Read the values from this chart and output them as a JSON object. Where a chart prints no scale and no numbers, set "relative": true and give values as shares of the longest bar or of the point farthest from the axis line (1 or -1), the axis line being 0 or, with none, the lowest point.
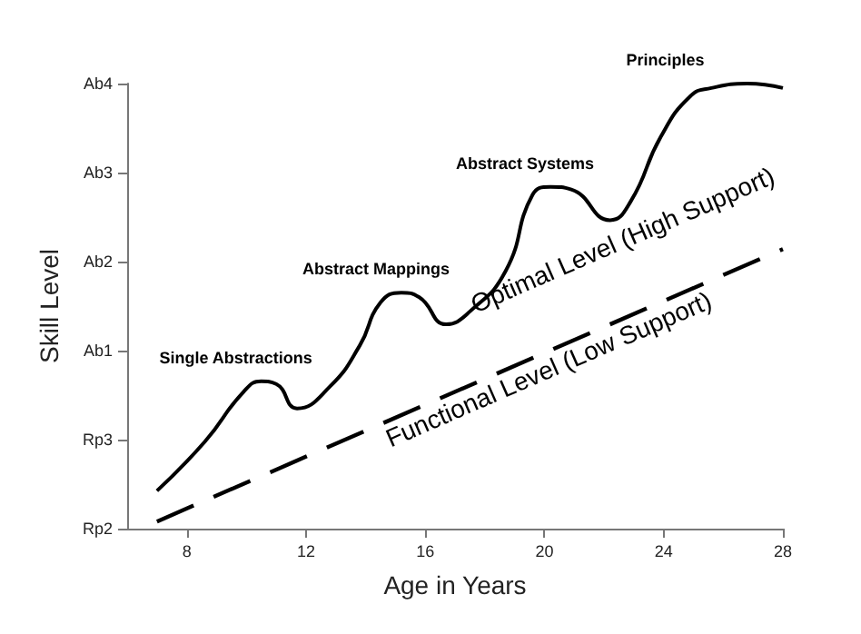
{
  "chart_data": {
    "type": "line",
    "xlabel": "Age in Years",
    "ylabel": "Skill Level",
    "xlim": [
      6,
      28
    ],
    "xticks": [
      8,
      12,
      16,
      20,
      24,
      28
    ],
    "relative": true,
    "y_categories": [
      "Ab4",
      "Ab3",
      "Ab2",
      "Ab1",
      "Rp3",
      "Rp2"
    ],
    "grid": false,
    "legend": false,
    "marker": "none",
    "series": [
      {
        "name": "Optimal Level (High Support)",
        "color": "#000000",
        "line_style": "solid",
        "x": [
          7.0,
          8.6,
          9.9,
          10.5,
          11.0,
          11.7,
          12.8,
          13.8,
          14.5,
          15.2,
          15.8,
          16.7,
          17.5,
          18.7,
          19.6,
          20.2,
          20.9,
          22.2,
          22.9,
          23.9,
          24.9,
          25.6,
          26.8,
          28.0
        ],
        "values": [
          0.085,
          0.195,
          0.307,
          0.331,
          0.325,
          0.27,
          0.319,
          0.411,
          0.508,
          0.53,
          0.52,
          0.459,
          0.488,
          0.579,
          0.75,
          0.768,
          0.762,
          0.693,
          0.736,
          0.88,
          0.972,
          0.99,
          1,
          0.99
        ]
      },
      {
        "name": "Functional Level (Low Support)",
        "color": "#000000",
        "line_style": "dashed",
        "x": [
          7.0,
          28.0
        ],
        "values": [
          0.016,
          0.628
        ]
      }
    ],
    "annotations": [
      "Single Abstractions",
      "Abstract Mappings",
      "Abstract Systems",
      "Principles"
    ]
  }
}
